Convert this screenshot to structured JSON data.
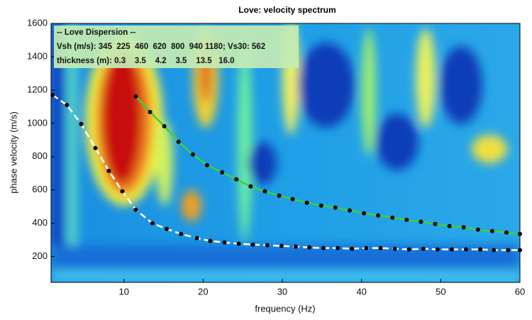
{
  "chart_data": {
    "type": "line",
    "title": "Love: velocity spectrum",
    "x_label": "frequency (Hz)",
    "y_label": "phase velocity (m/s)",
    "xlim": [
      0.8,
      60
    ],
    "ylim": [
      45,
      1600
    ],
    "xticks": [
      10,
      20,
      30,
      40,
      50,
      60
    ],
    "yticks": [
      200,
      400,
      600,
      800,
      1000,
      1200,
      1400,
      1600
    ],
    "annotations": [
      "-- Love Dispersion --",
      "Vsh (m/s): 345  225  460  620  800  940 1180; Vs30: 562",
      "thickness (m): 0.3    3.5    4.2    3.5    13.5   16.0"
    ],
    "series": [
      {
        "color": "#ffffff",
        "dash": true,
        "x": [
          1.0,
          2.8,
          4.6,
          6.4,
          8.1,
          9.8,
          11.5,
          13.6,
          15.4,
          17.2,
          19.2,
          20.9,
          22.7,
          24.5,
          26.3,
          28.1,
          29.9,
          31.7,
          33.4,
          35.2,
          37.0,
          38.8,
          40.6,
          42.4,
          44.2,
          46.0,
          47.8,
          49.6,
          51.4,
          53.2,
          55.0,
          56.7,
          58.5,
          60.0
        ],
        "values": [
          1170,
          1110,
          996,
          851,
          715,
          592,
          481,
          400,
          366,
          336,
          311,
          294,
          285,
          277,
          272,
          268,
          264,
          260,
          255,
          251,
          251,
          247,
          251,
          251,
          247,
          243,
          247,
          243,
          243,
          243,
          243,
          239,
          239,
          239
        ]
      },
      {
        "color": "#3fcf3f",
        "dash": false,
        "x": [
          11.5,
          13.3,
          15.1,
          16.9,
          18.7,
          20.5,
          22.4,
          24.2,
          26.0,
          27.8,
          29.6,
          31.3,
          33.1,
          34.9,
          36.7,
          38.5,
          40.3,
          42.1,
          43.9,
          45.7,
          47.5,
          49.3,
          51.1,
          52.9,
          54.7,
          56.5,
          58.3,
          60.0
        ],
        "values": [
          1162,
          1068,
          983,
          889,
          813,
          749,
          706,
          664,
          621,
          592,
          566,
          545,
          523,
          506,
          494,
          477,
          460,
          447,
          434,
          421,
          409,
          396,
          383,
          375,
          362,
          353,
          345,
          336
        ]
      }
    ]
  }
}
